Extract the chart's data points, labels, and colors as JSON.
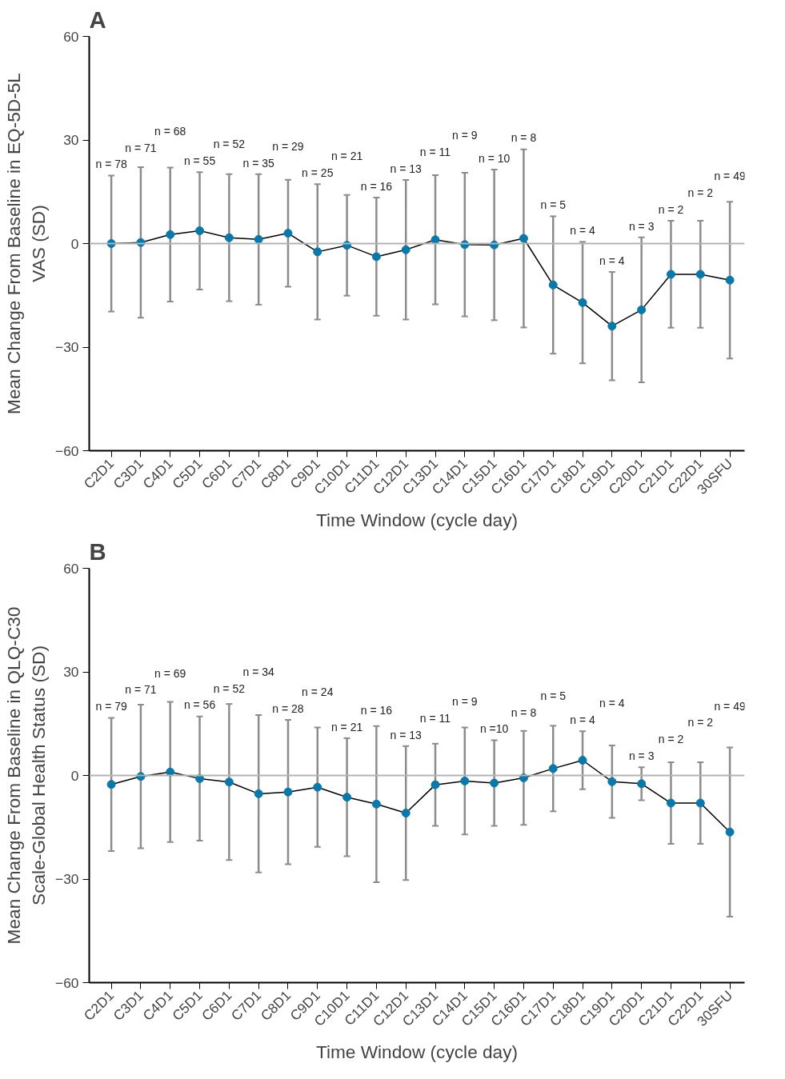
{
  "chart_data": [
    {
      "type": "line",
      "title": "A",
      "xlabel": "Time Window (cycle day)",
      "ylabel": "Mean Change From Baseline in EQ-5D-5L VAS (SD)",
      "categories": [
        "C2D1",
        "C3D1",
        "C4D1",
        "C5D1",
        "C6D1",
        "C7D1",
        "C8D1",
        "C9D1",
        "C10D1",
        "C11D1",
        "C12D1",
        "C13D1",
        "C14D1",
        "C15D1",
        "C16D1",
        "C17D1",
        "C18D1",
        "C19D1",
        "C20D1",
        "C21D1",
        "C22D1",
        "30SFU"
      ],
      "series": [
        {
          "color": "#0a78a8",
          "values": [
            0,
            0.3,
            2.6,
            3.7,
            1.7,
            1.2,
            3.0,
            -2.4,
            -0.5,
            -3.8,
            -1.8,
            1.1,
            -0.3,
            -0.4,
            1.5,
            -12.0,
            -17.1,
            -23.9,
            -19.2,
            -8.9,
            -8.9,
            -10.6
          ],
          "errors": [
            19.7,
            21.8,
            19.4,
            17.0,
            18.4,
            18.9,
            15.5,
            19.6,
            14.6,
            17.1,
            20.2,
            18.7,
            20.8,
            21.8,
            25.8,
            19.9,
            17.6,
            15.7,
            21.0,
            15.5,
            15.5,
            22.7
          ]
        }
      ],
      "ylim": [
        -60,
        60
      ],
      "yticks": [
        -60,
        -30,
        0,
        30,
        60
      ],
      "marker": "circle",
      "line_style": "solid",
      "grid": false,
      "ref_lines": [
        {
          "axis": "y",
          "value": 0,
          "label": null,
          "color": "#b3b3b3"
        }
      ],
      "annotations": [
        "n = 78",
        "n = 71",
        "n = 68",
        "n = 55",
        "n = 52",
        "n = 35",
        "n = 29",
        "n = 25",
        "n = 21",
        "n = 16",
        "n = 13",
        "n = 11",
        "n = 9",
        "n = 10",
        "n = 8",
        "n = 5",
        "n = 4",
        "n = 4",
        "n = 3",
        "n = 2",
        "n = 2",
        "n = 49"
      ]
    },
    {
      "type": "line",
      "title": "B",
      "xlabel": "Time Window (cycle day)",
      "ylabel": "Mean Change From Baseline in QLQ-C30 Scale-Global Health Status (SD)",
      "categories": [
        "C2D1",
        "C3D1",
        "C4D1",
        "C5D1",
        "C6D1",
        "C7D1",
        "C8D1",
        "C9D1",
        "C10D1",
        "C11D1",
        "C12D1",
        "C13D1",
        "C14D1",
        "C15D1",
        "C16D1",
        "C17D1",
        "C18D1",
        "C19D1",
        "C20D1",
        "C21D1",
        "C22D1",
        "30SFU"
      ],
      "series": [
        {
          "color": "#0a78a8",
          "values": [
            -2.6,
            -0.3,
            1.0,
            -0.9,
            -1.9,
            -5.3,
            -4.8,
            -3.4,
            -6.3,
            -8.3,
            -10.9,
            -2.7,
            -1.6,
            -2.2,
            -0.7,
            2.0,
            4.4,
            -1.8,
            -2.4,
            -8.0,
            -8.0,
            -16.4
          ],
          "errors": [
            19.3,
            20.8,
            20.3,
            18.0,
            22.6,
            22.8,
            20.9,
            17.3,
            17.1,
            22.6,
            19.4,
            11.9,
            15.5,
            12.4,
            13.6,
            12.4,
            8.4,
            10.5,
            4.8,
            11.8,
            11.8,
            24.5
          ]
        }
      ],
      "ylim": [
        -60,
        60
      ],
      "yticks": [
        -60,
        -30,
        0,
        30,
        60
      ],
      "marker": "circle",
      "line_style": "solid",
      "grid": false,
      "ref_lines": [
        {
          "axis": "y",
          "value": 0,
          "label": null,
          "color": "#b3b3b3"
        }
      ],
      "annotations": [
        "n = 79",
        "n = 71",
        "n = 69",
        "n = 56",
        "n = 52",
        "n = 34",
        "n = 28",
        "n = 24",
        "n = 21",
        "n = 16",
        "n = 13",
        "n = 11",
        "n = 9",
        "n =10",
        "n = 8",
        "n = 5",
        "n = 4",
        "n = 4",
        "n = 3",
        "n = 2",
        "n = 2",
        "n = 49"
      ]
    }
  ]
}
